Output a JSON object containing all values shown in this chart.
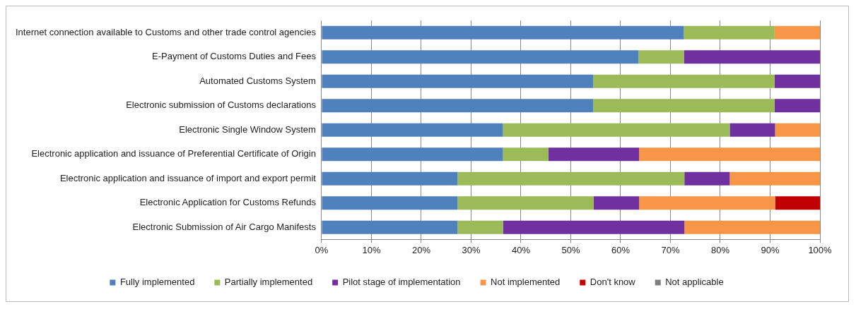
{
  "chart_data": {
    "type": "bar",
    "orientation": "horizontal",
    "stacked": true,
    "categories": [
      "Internet connection available to Customs and other trade control agencies",
      "E-Payment of Customs Duties and Fees",
      "Automated Customs System",
      "Electronic submission of Customs declarations",
      "Electronic Single Window System",
      "Electronic application and issuance of Preferential Certificate of Origin",
      "Electronic application and issuance of import and export permit",
      "Electronic Application for Customs Refunds",
      "Electronic Submission of Air Cargo Manifests"
    ],
    "series": [
      {
        "name": "Fully implemented",
        "color": "#4f81bd",
        "values": [
          72.7,
          63.6,
          54.5,
          54.5,
          36.4,
          36.4,
          27.3,
          27.3,
          27.3
        ]
      },
      {
        "name": "Partially implemented",
        "color": "#9bbb59",
        "values": [
          18.2,
          9.1,
          36.4,
          36.4,
          45.5,
          9.1,
          45.5,
          27.3,
          9.1
        ]
      },
      {
        "name": "Pilot stage of implementation",
        "color": "#7030a0",
        "values": [
          0,
          27.3,
          9.1,
          9.1,
          9.1,
          18.2,
          9.1,
          9.1,
          36.4
        ]
      },
      {
        "name": "Not implemented",
        "color": "#f79646",
        "values": [
          9.1,
          0,
          0,
          0,
          9.0,
          36.3,
          18.1,
          27.3,
          27.2
        ]
      },
      {
        "name": "Don't know",
        "color": "#c00000",
        "values": [
          0,
          0,
          0,
          0,
          0,
          0,
          0,
          9.0,
          0
        ]
      },
      {
        "name": "Not applicable",
        "color": "#7f7f7f",
        "values": [
          0,
          0,
          0,
          0,
          0,
          0,
          0,
          0,
          0
        ]
      }
    ],
    "xlim": [
      0,
      100
    ],
    "xticks": [
      {
        "value": 0,
        "label": "0%"
      },
      {
        "value": 10,
        "label": "10%"
      },
      {
        "value": 20,
        "label": "20%"
      },
      {
        "value": 30,
        "label": "30%"
      },
      {
        "value": 40,
        "label": "40%"
      },
      {
        "value": 50,
        "label": "50%"
      },
      {
        "value": 60,
        "label": "60%"
      },
      {
        "value": 70,
        "label": "70%"
      },
      {
        "value": 80,
        "label": "80%"
      },
      {
        "value": 90,
        "label": "90%"
      },
      {
        "value": 100,
        "label": "100%"
      }
    ],
    "grid": "x",
    "legend": "bottom"
  }
}
